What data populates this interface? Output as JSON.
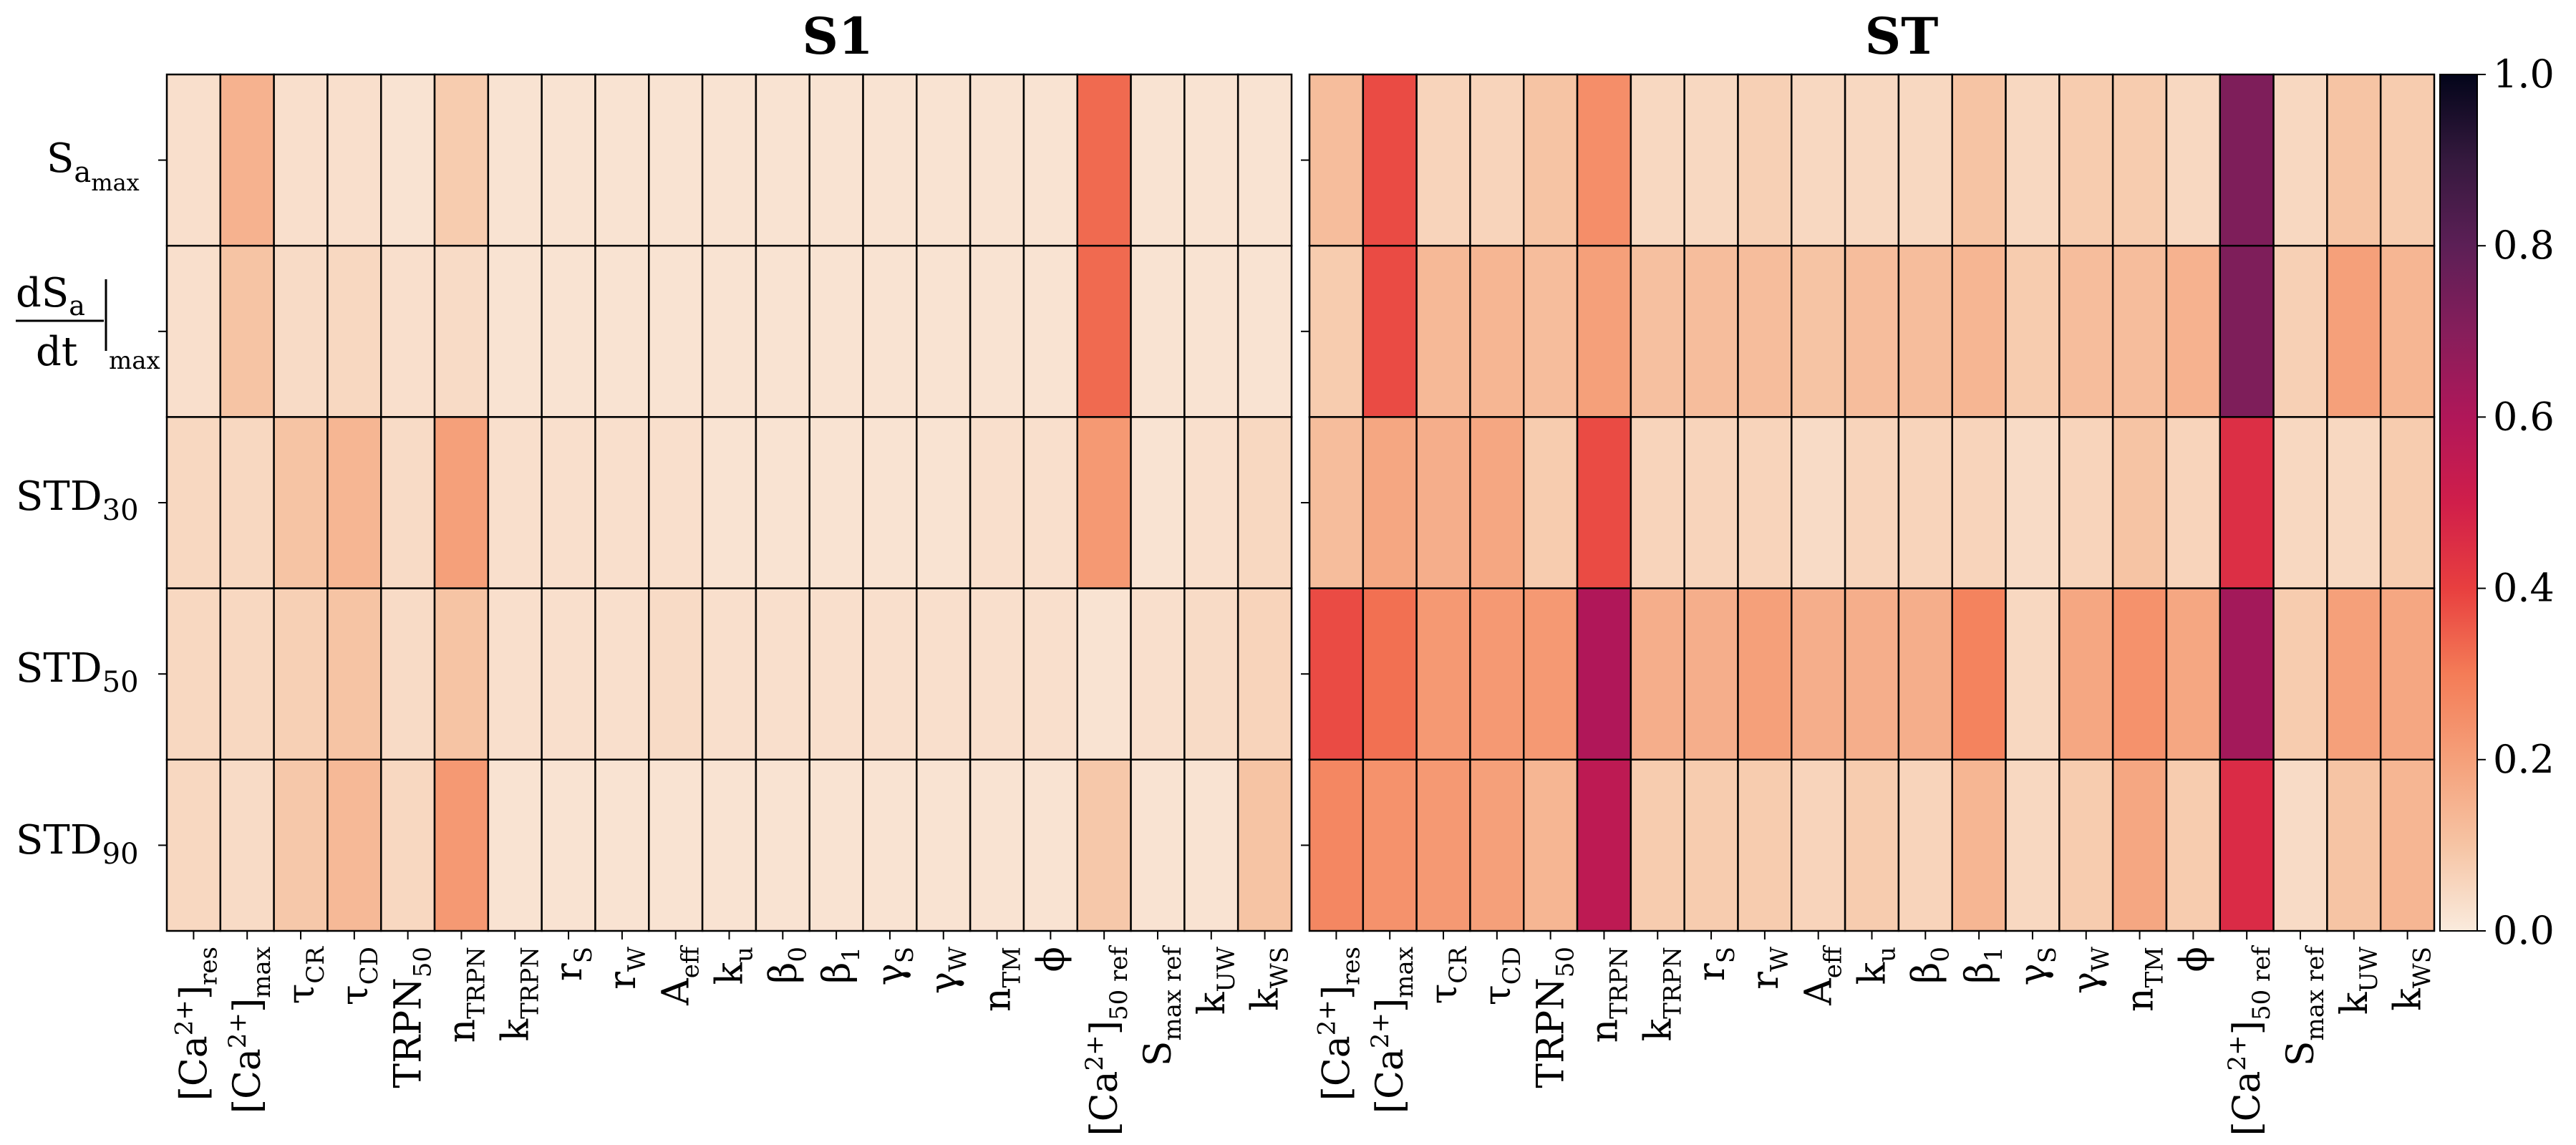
{
  "chart_data": [
    {
      "type": "heatmap",
      "title": "S1",
      "rows": [
        "S_a_max",
        "dS_a/dt|_max",
        "STD_30",
        "STD_50",
        "STD_90"
      ],
      "columns": [
        "[Ca2+]_res",
        "[Ca2+]_max",
        "τ_CR",
        "τ_CD",
        "TRPN_50",
        "n_TRPN",
        "k_TRPN",
        "r_S",
        "r_W",
        "A_eff",
        "k_u",
        "β_0",
        "β_1",
        "γ_S",
        "γ_W",
        "n_TM",
        "ϕ",
        "[Ca2+]_50ref",
        "S_maxref",
        "k_UW",
        "k_WS"
      ],
      "values": [
        [
          0.03,
          0.15,
          0.03,
          0.03,
          0.02,
          0.08,
          0.02,
          0.02,
          0.02,
          0.02,
          0.02,
          0.02,
          0.02,
          0.02,
          0.02,
          0.02,
          0.02,
          0.33,
          0.02,
          0.02,
          0.02
        ],
        [
          0.03,
          0.1,
          0.04,
          0.05,
          0.03,
          0.04,
          0.02,
          0.02,
          0.02,
          0.02,
          0.02,
          0.02,
          0.02,
          0.02,
          0.02,
          0.02,
          0.02,
          0.33,
          0.02,
          0.02,
          0.02
        ],
        [
          0.05,
          0.05,
          0.1,
          0.14,
          0.04,
          0.2,
          0.03,
          0.03,
          0.03,
          0.03,
          0.02,
          0.02,
          0.02,
          0.02,
          0.02,
          0.03,
          0.03,
          0.22,
          0.02,
          0.03,
          0.05
        ],
        [
          0.05,
          0.05,
          0.07,
          0.1,
          0.04,
          0.1,
          0.03,
          0.03,
          0.03,
          0.04,
          0.03,
          0.03,
          0.03,
          0.03,
          0.03,
          0.03,
          0.03,
          0.02,
          0.03,
          0.04,
          0.06
        ],
        [
          0.05,
          0.04,
          0.09,
          0.13,
          0.05,
          0.22,
          0.02,
          0.02,
          0.02,
          0.02,
          0.02,
          0.02,
          0.02,
          0.02,
          0.02,
          0.02,
          0.02,
          0.09,
          0.02,
          0.02,
          0.1
        ]
      ]
    },
    {
      "type": "heatmap",
      "title": "ST",
      "rows": [
        "S_a_max",
        "dS_a/dt|_max",
        "STD_30",
        "STD_50",
        "STD_90"
      ],
      "columns": [
        "[Ca2+]_res",
        "[Ca2+]_max",
        "τ_CR",
        "τ_CD",
        "TRPN_50",
        "n_TRPN",
        "k_TRPN",
        "r_S",
        "r_W",
        "A_eff",
        "k_u",
        "β_0",
        "β_1",
        "γ_S",
        "γ_W",
        "n_TM",
        "ϕ",
        "[Ca2+]_50ref",
        "S_maxref",
        "k_UW",
        "k_WS"
      ],
      "values": [
        [
          0.12,
          0.38,
          0.06,
          0.06,
          0.1,
          0.25,
          0.05,
          0.05,
          0.07,
          0.05,
          0.05,
          0.05,
          0.1,
          0.05,
          0.08,
          0.08,
          0.05,
          0.72,
          0.05,
          0.1,
          0.08
        ],
        [
          0.08,
          0.38,
          0.13,
          0.14,
          0.12,
          0.2,
          0.11,
          0.12,
          0.12,
          0.1,
          0.12,
          0.12,
          0.14,
          0.08,
          0.12,
          0.12,
          0.15,
          0.72,
          0.07,
          0.2,
          0.14
        ],
        [
          0.12,
          0.18,
          0.16,
          0.18,
          0.08,
          0.38,
          0.06,
          0.06,
          0.06,
          0.04,
          0.06,
          0.06,
          0.06,
          0.04,
          0.06,
          0.1,
          0.06,
          0.45,
          0.05,
          0.05,
          0.08
        ],
        [
          0.38,
          0.32,
          0.22,
          0.22,
          0.22,
          0.6,
          0.16,
          0.16,
          0.2,
          0.16,
          0.16,
          0.16,
          0.28,
          0.05,
          0.18,
          0.24,
          0.18,
          0.63,
          0.08,
          0.2,
          0.18
        ],
        [
          0.27,
          0.24,
          0.22,
          0.2,
          0.14,
          0.56,
          0.08,
          0.08,
          0.08,
          0.06,
          0.08,
          0.06,
          0.14,
          0.05,
          0.08,
          0.18,
          0.08,
          0.46,
          0.04,
          0.1,
          0.14
        ]
      ]
    }
  ],
  "colorbar": {
    "min": 0.0,
    "max": 1.0,
    "ticks": [
      "0.0",
      "0.2",
      "0.4",
      "0.6",
      "0.8",
      "1.0"
    ]
  }
}
